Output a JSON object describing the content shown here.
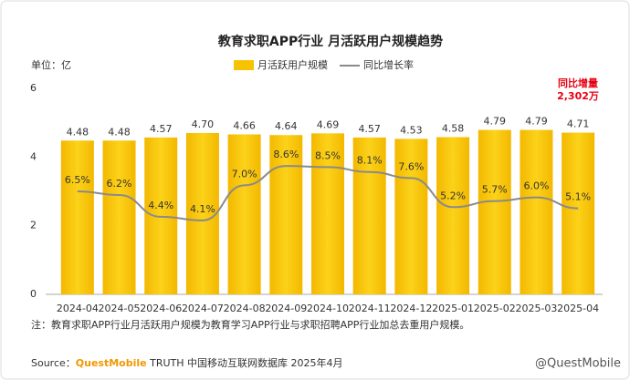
{
  "chart_data": {
    "type": "bar",
    "title": "教育求职APP行业 月活跃用户规模趋势",
    "unit_label": "单位：亿",
    "categories": [
      "2024-04",
      "2024-05",
      "2024-06",
      "2024-07",
      "2024-08",
      "2024-09",
      "2024-10",
      "2024-11",
      "2024-12",
      "2025-01",
      "2025-02",
      "2025-03",
      "2025-04"
    ],
    "series": [
      {
        "name": "月活跃用户规模",
        "type": "bar",
        "color": "#f7c300",
        "values": [
          4.48,
          4.48,
          4.57,
          4.7,
          4.66,
          4.64,
          4.69,
          4.57,
          4.53,
          4.58,
          4.79,
          4.79,
          4.71
        ],
        "value_labels": [
          "4.48",
          "4.48",
          "4.57",
          "4.70",
          "4.66",
          "4.64",
          "4.69",
          "4.57",
          "4.53",
          "4.58",
          "4.79",
          "4.79",
          "4.71"
        ]
      },
      {
        "name": "同比增长率",
        "type": "line",
        "axis": "y2",
        "color": "#8a8a8a",
        "values": [
          6.5,
          6.2,
          4.4,
          4.1,
          7.0,
          8.6,
          8.5,
          8.1,
          7.6,
          5.2,
          5.7,
          6.0,
          5.1
        ],
        "value_labels": [
          "6.5%",
          "6.2%",
          "4.4%",
          "4.1%",
          "7.0%",
          "8.6%",
          "8.5%",
          "8.1%",
          "7.6%",
          "5.2%",
          "5.7%",
          "6.0%",
          "5.1%"
        ]
      }
    ],
    "ylim": [
      0,
      6
    ],
    "yticks": [
      0,
      2,
      4,
      6
    ],
    "y2lim": [
      -2,
      15
    ],
    "grid": false,
    "annotation": [
      "同比增量",
      "2,302万"
    ],
    "note": "注：教育求职APP行业月活跃用户规模为教育学习APP行业与求职招聘APP行业加总去重用户规模。",
    "source": [
      "Source：",
      "QuestMobile",
      " TRUTH 中国移动互联网数据库 2025年4月"
    ],
    "watermark": "@QuestMobile"
  }
}
